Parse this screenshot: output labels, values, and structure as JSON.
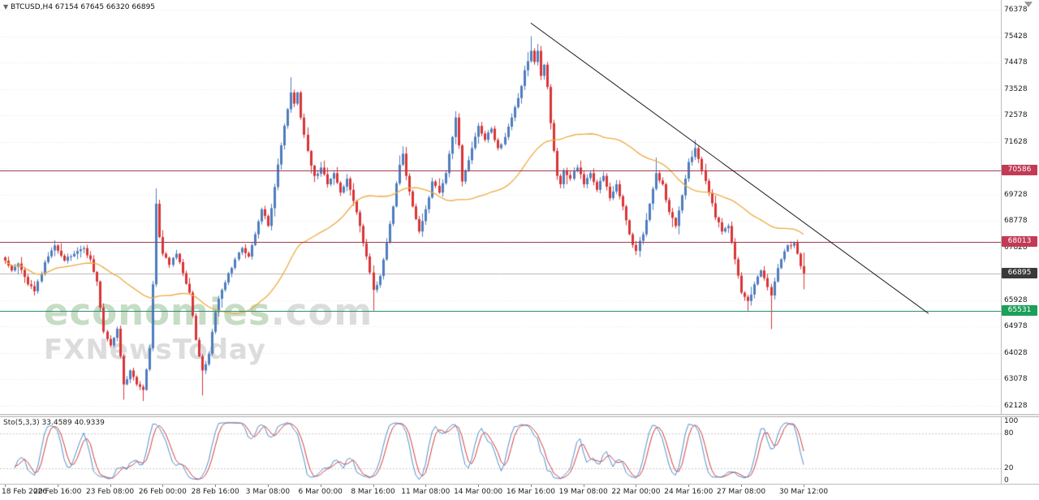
{
  "header": {
    "symbol": "BTCUSD,H4",
    "ohlc": "67154 67645 66320 66895"
  },
  "watermark": {
    "brand": "economies",
    "domain": ".com",
    "subtitle": "FXNewsToday"
  },
  "price_axis": {
    "labels": [
      76378,
      75428,
      74478,
      73528,
      72578,
      71628,
      70678,
      69728,
      68778,
      67828,
      66878,
      65928,
      64978,
      64028,
      63078,
      62128
    ]
  },
  "levels": [
    {
      "price": 70586,
      "line_color": "#A23B55",
      "badge_color": "#C13B55"
    },
    {
      "price": 68013,
      "line_color": "#A23B55",
      "badge_color": "#C13B55"
    },
    {
      "price": 65531,
      "line_color": "#2E8B74",
      "badge_color": "#1CA05A"
    }
  ],
  "current_price": {
    "value": 66895,
    "badge_color": "#3A3A3A",
    "line_color": "#B5B5B5"
  },
  "stochastic_panel": {
    "label": "Sto(5,3,3)",
    "values": "33.4589 40.9339",
    "scale_labels": [
      100,
      80,
      20,
      0
    ],
    "levels": [
      80,
      20
    ],
    "main_color": "#4D8FCC",
    "signal_color": "#D23B3B"
  },
  "chart_data": {
    "type": "candlestick",
    "symbol": "BTCUSD",
    "timeframe": "H4",
    "title": "BTCUSD H4 candlestick chart with SMA, descending trendline, horizontal levels and Stochastic(5,3,3)",
    "up_color": "#4E7DBE",
    "down_color": "#D93436",
    "price_range": [
      62128,
      76378
    ],
    "bars_total": 244,
    "close_keyframes": [
      [
        0,
        67350
      ],
      [
        2,
        67000
      ],
      [
        4,
        67250
      ],
      [
        7,
        66500
      ],
      [
        9,
        66250
      ],
      [
        12,
        67300
      ],
      [
        15,
        67900
      ],
      [
        18,
        67350
      ],
      [
        21,
        67600
      ],
      [
        24,
        67800
      ],
      [
        26,
        67400
      ],
      [
        28,
        66600
      ],
      [
        30,
        64800
      ],
      [
        32,
        64300
      ],
      [
        34,
        64900
      ],
      [
        36,
        62900
      ],
      [
        38,
        63400
      ],
      [
        40,
        62900
      ],
      [
        42,
        62700
      ],
      [
        44,
        64200
      ],
      [
        45,
        66500
      ],
      [
        46,
        69400
      ],
      [
        47,
        68200
      ],
      [
        48,
        67600
      ],
      [
        50,
        67200
      ],
      [
        52,
        67600
      ],
      [
        54,
        66900
      ],
      [
        56,
        66200
      ],
      [
        58,
        64500
      ],
      [
        60,
        63400
      ],
      [
        62,
        64000
      ],
      [
        64,
        65500
      ],
      [
        66,
        66300
      ],
      [
        68,
        66900
      ],
      [
        70,
        67400
      ],
      [
        72,
        67800
      ],
      [
        74,
        67500
      ],
      [
        76,
        68300
      ],
      [
        78,
        69200
      ],
      [
        80,
        68600
      ],
      [
        82,
        70000
      ],
      [
        84,
        71500
      ],
      [
        86,
        72800
      ],
      [
        87,
        73400
      ],
      [
        88,
        73000
      ],
      [
        89,
        73400
      ],
      [
        90,
        72500
      ],
      [
        92,
        71300
      ],
      [
        94,
        70400
      ],
      [
        96,
        70700
      ],
      [
        98,
        70100
      ],
      [
        100,
        70500
      ],
      [
        102,
        69800
      ],
      [
        104,
        70300
      ],
      [
        106,
        69500
      ],
      [
        108,
        68600
      ],
      [
        110,
        67500
      ],
      [
        112,
        66300
      ],
      [
        114,
        66800
      ],
      [
        116,
        68000
      ],
      [
        118,
        69300
      ],
      [
        120,
        70800
      ],
      [
        121,
        71200
      ],
      [
        122,
        70400
      ],
      [
        124,
        69300
      ],
      [
        126,
        68400
      ],
      [
        128,
        69200
      ],
      [
        130,
        70200
      ],
      [
        132,
        69800
      ],
      [
        134,
        70500
      ],
      [
        136,
        71800
      ],
      [
        137,
        72500
      ],
      [
        138,
        71500
      ],
      [
        139,
        70200
      ],
      [
        140,
        70600
      ],
      [
        142,
        71400
      ],
      [
        144,
        72200
      ],
      [
        146,
        71700
      ],
      [
        148,
        72100
      ],
      [
        150,
        71400
      ],
      [
        152,
        71800
      ],
      [
        154,
        72500
      ],
      [
        156,
        73200
      ],
      [
        158,
        74200
      ],
      [
        160,
        74900
      ],
      [
        161,
        74500
      ],
      [
        162,
        74900
      ],
      [
        163,
        74000
      ],
      [
        164,
        74400
      ],
      [
        165,
        73600
      ],
      [
        166,
        72300
      ],
      [
        167,
        71300
      ],
      [
        168,
        70400
      ],
      [
        169,
        70100
      ],
      [
        170,
        70600
      ],
      [
        172,
        70300
      ],
      [
        174,
        70700
      ],
      [
        176,
        70100
      ],
      [
        178,
        70500
      ],
      [
        180,
        69900
      ],
      [
        182,
        70400
      ],
      [
        184,
        69600
      ],
      [
        186,
        70100
      ],
      [
        188,
        69300
      ],
      [
        190,
        68300
      ],
      [
        192,
        67700
      ],
      [
        194,
        68300
      ],
      [
        196,
        69400
      ],
      [
        198,
        70500
      ],
      [
        200,
        70100
      ],
      [
        202,
        69100
      ],
      [
        204,
        68600
      ],
      [
        206,
        69700
      ],
      [
        208,
        70900
      ],
      [
        210,
        71400
      ],
      [
        212,
        70600
      ],
      [
        214,
        69800
      ],
      [
        216,
        68900
      ],
      [
        218,
        68400
      ],
      [
        220,
        68600
      ],
      [
        222,
        67400
      ],
      [
        224,
        66200
      ],
      [
        226,
        65900
      ],
      [
        228,
        66500
      ],
      [
        230,
        67000
      ],
      [
        232,
        66400
      ],
      [
        233,
        66100
      ],
      [
        234,
        66600
      ],
      [
        236,
        67400
      ],
      [
        238,
        67900
      ],
      [
        240,
        68000
      ],
      [
        241,
        67600
      ],
      [
        242,
        67154
      ],
      [
        243,
        66895
      ]
    ],
    "wick_overrides": [
      {
        "bar": 36,
        "low": 62350
      },
      {
        "bar": 42,
        "low": 62300
      },
      {
        "bar": 46,
        "high": 69950
      },
      {
        "bar": 60,
        "low": 62500
      },
      {
        "bar": 87,
        "high": 73950
      },
      {
        "bar": 112,
        "low": 65551
      },
      {
        "bar": 121,
        "high": 71470
      },
      {
        "bar": 137,
        "high": 72730
      },
      {
        "bar": 160,
        "high": 75430
      },
      {
        "bar": 162,
        "high": 75150
      },
      {
        "bar": 198,
        "high": 71060
      },
      {
        "bar": 210,
        "high": 71700
      },
      {
        "bar": 226,
        "low": 65540
      },
      {
        "bar": 233,
        "low": 64890
      },
      {
        "bar": 243,
        "high": 67645,
        "low": 66320
      }
    ],
    "moving_average": {
      "period": 45,
      "color": "#EDA93C"
    },
    "trendline": {
      "points": [
        [
          160,
          75900
        ],
        [
          281,
          65450
        ]
      ],
      "color": "#1A1A1A"
    },
    "x_ticks": [
      {
        "bar": 0,
        "label": "18 Feb 2026"
      },
      {
        "bar": 16,
        "label": "20 Feb 16:00"
      },
      {
        "bar": 32,
        "label": "23 Feb 08:00"
      },
      {
        "bar": 48,
        "label": "26 Feb 00:00"
      },
      {
        "bar": 64,
        "label": "28 Feb 16:00"
      },
      {
        "bar": 80,
        "label": "3 Mar 08:00"
      },
      {
        "bar": 96,
        "label": "6 Mar 00:00"
      },
      {
        "bar": 112,
        "label": "8 Mar 16:00"
      },
      {
        "bar": 128,
        "label": "11 Mar 08:00"
      },
      {
        "bar": 144,
        "label": "14 Mar 00:00"
      },
      {
        "bar": 160,
        "label": "16 Mar 16:00"
      },
      {
        "bar": 176,
        "label": "19 Mar 08:00"
      },
      {
        "bar": 192,
        "label": "22 Mar 00:00"
      },
      {
        "bar": 208,
        "label": "24 Mar 16:00"
      },
      {
        "bar": 224,
        "label": "27 Mar 08:00"
      },
      {
        "bar": 243,
        "label": "30 Mar 12:00"
      }
    ]
  }
}
